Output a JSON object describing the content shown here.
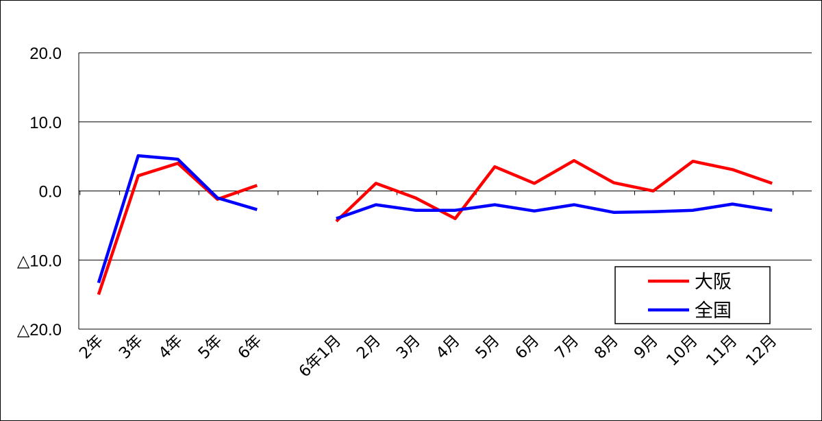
{
  "chart_data": {
    "type": "line",
    "categories": [
      "2年",
      "3年",
      "4年",
      "5年",
      "6年",
      "",
      "6年1月",
      "2月",
      "3月",
      "4月",
      "5月",
      "6月",
      "7月",
      "8月",
      "9月",
      "10月",
      "11月",
      "12月"
    ],
    "ylim": [
      -20,
      20
    ],
    "yticks": [
      20,
      10,
      0,
      -10,
      -20
    ],
    "ytick_labels": [
      "20.0",
      "10.0",
      "0.0",
      "△10.0",
      "△20.0"
    ],
    "grid": true,
    "legend_position": "bottom-right",
    "series": [
      {
        "name": "大阪",
        "color": "#ff0000",
        "values": [
          -15.0,
          2.2,
          4.0,
          -1.2,
          0.8,
          null,
          -4.4,
          1.1,
          -1.0,
          -4.0,
          3.5,
          1.1,
          4.4,
          1.2,
          0.0,
          4.3,
          3.1,
          1.1
        ]
      },
      {
        "name": "全国",
        "color": "#0000ff",
        "values": [
          -13.3,
          5.1,
          4.6,
          -1.0,
          -2.7,
          null,
          -4.0,
          -2.0,
          -2.8,
          -2.8,
          -2.0,
          -2.9,
          -2.0,
          -3.1,
          -3.0,
          -2.8,
          -1.9,
          -2.8
        ]
      }
    ]
  }
}
